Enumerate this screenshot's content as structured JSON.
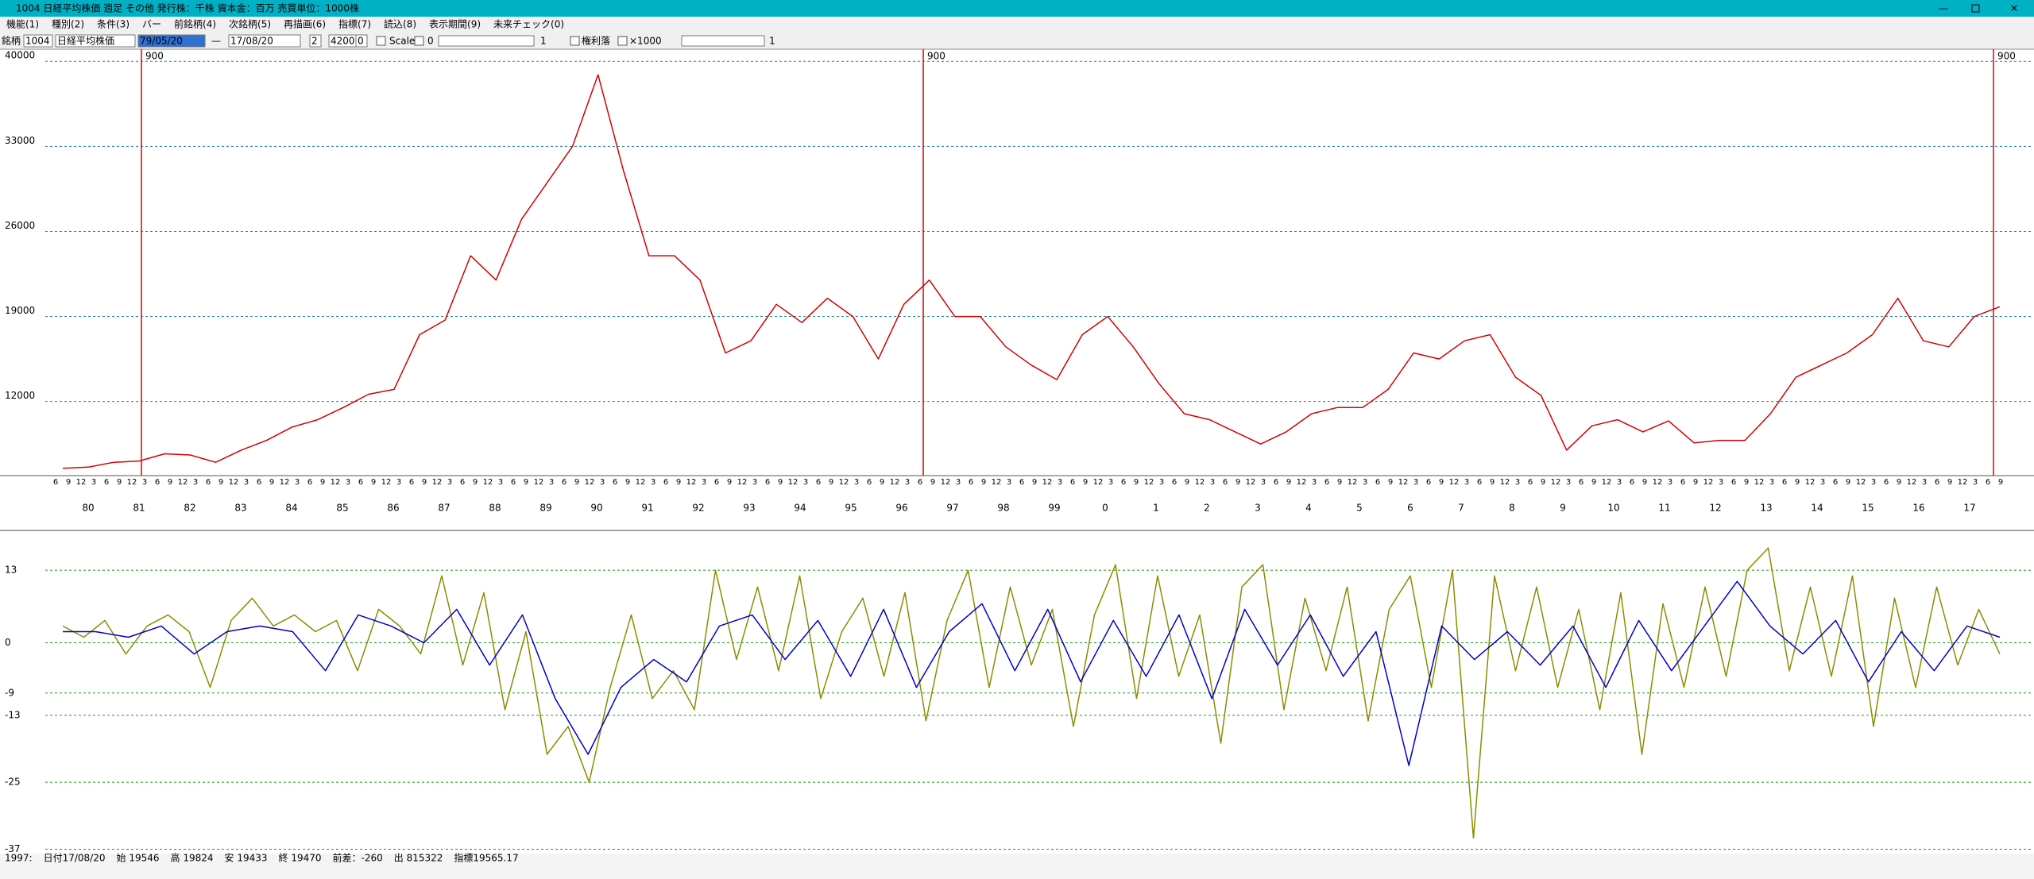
{
  "window": {
    "title": "1004 日経平均株価  週足  その他  発行株：千株  資本金：百万  売買単位：1000株"
  },
  "menu": [
    "機能(1)",
    "種別(2)",
    "条件(3)",
    "バー",
    "前銘柄(4)",
    "次銘柄(5)",
    "再描画(6)",
    "指標(7)",
    "読込(8)",
    "表示期間(9)",
    "未来チェック(0)"
  ],
  "toolbar": {
    "code_label": "銘柄",
    "code": "1004",
    "name": "日経平均株価",
    "from_date": "79/05/20",
    "dash": "—",
    "to_date": "17/08/20",
    "step": "2",
    "count": "4200",
    "offset": "0",
    "scale_label": "Scale",
    "scale_value": "0",
    "slider1_value": "1",
    "rights_label": "権利落",
    "multiplier_label": "×1000",
    "slider2_value": "1"
  },
  "price_chart": {
    "type": "line",
    "color": "#d40000",
    "ylim": [
      5900,
      40800
    ],
    "yticks": [
      12000,
      19000,
      26000,
      33000,
      40000
    ],
    "grid": true,
    "period_marks": [
      "900",
      "900",
      "900"
    ],
    "month_labels": [
      "6",
      "9",
      "12",
      "3"
    ],
    "year_labels": [
      "80",
      "81",
      "82",
      "83",
      "84",
      "85",
      "86",
      "87",
      "88",
      "89",
      "90",
      "91",
      "92",
      "93",
      "94",
      "95",
      "96",
      "97",
      "98",
      "99",
      "0",
      "1",
      "2",
      "3",
      "4",
      "5",
      "6",
      "7",
      "8",
      "9",
      "10",
      "11",
      "12",
      "13",
      "14",
      "15",
      "16",
      "17"
    ],
    "values": [
      6500,
      6600,
      7000,
      7100,
      7700,
      7600,
      7000,
      8000,
      8800,
      9900,
      10500,
      11500,
      12600,
      13000,
      17500,
      18700,
      24000,
      22000,
      27000,
      30000,
      33000,
      38900,
      31000,
      24000,
      24000,
      22000,
      16000,
      17000,
      20000,
      18500,
      20500,
      19000,
      15500,
      20000,
      22000,
      19000,
      19000,
      16500,
      15000,
      13800,
      17500,
      19000,
      16500,
      13500,
      11000,
      10500,
      9500,
      8500,
      9500,
      11000,
      11500,
      11500,
      13000,
      16000,
      15500,
      17000,
      17500,
      14000,
      12500,
      8000,
      10000,
      10500,
      9500,
      10400,
      8600,
      8800,
      8800,
      11000,
      14000,
      15000,
      16000,
      17500,
      20500,
      17000,
      16500,
      19000,
      19800
    ]
  },
  "oscillator_chart": {
    "type": "line",
    "ylim": [
      -37.5,
      20
    ],
    "yticks": [
      13,
      0,
      -9,
      -13,
      -25,
      -37
    ],
    "grid": true,
    "series": [
      {
        "color": "#8c8c00",
        "values": [
          3,
          1,
          4,
          -2,
          3,
          5,
          2,
          -8,
          4,
          8,
          3,
          5,
          2,
          4,
          -5,
          6,
          3,
          -2,
          12,
          -4,
          9,
          -12,
          2,
          -20,
          -15,
          -25,
          -8,
          5,
          -10,
          -5,
          -12,
          13,
          -3,
          10,
          -5,
          12,
          -10,
          2,
          8,
          -6,
          9,
          -14,
          4,
          13,
          -8,
          10,
          -4,
          6,
          -15,
          5,
          14,
          -10,
          12,
          -6,
          5,
          -18,
          10,
          14,
          -12,
          8,
          -5,
          10,
          -14,
          6,
          12,
          -8,
          13,
          -35,
          12,
          -5,
          10,
          -8,
          6,
          -12,
          9,
          -20,
          7,
          -8,
          10,
          -6,
          13,
          17,
          -5,
          10,
          -6,
          12,
          -15,
          8,
          -8,
          10,
          -4,
          6,
          -2
        ]
      },
      {
        "color": "#0000c8",
        "values": [
          2,
          2,
          1,
          3,
          -2,
          2,
          3,
          2,
          -5,
          5,
          3,
          0,
          6,
          -4,
          5,
          -10,
          -20,
          -8,
          -3,
          -7,
          3,
          5,
          -3,
          4,
          -6,
          6,
          -8,
          2,
          7,
          -5,
          6,
          -7,
          4,
          -6,
          5,
          -10,
          6,
          -4,
          5,
          -6,
          2,
          -22,
          3,
          -3,
          2,
          -4,
          3,
          -8,
          4,
          -5,
          3,
          11,
          3,
          -2,
          4,
          -7,
          2,
          -5,
          3,
          1
        ]
      }
    ]
  },
  "status": [
    "1997:",
    "日付17/08/20",
    "始 19546",
    "高 19824",
    "安 19433",
    "終 19470",
    "前差：-260",
    "出 815322",
    "指標19565.17"
  ]
}
